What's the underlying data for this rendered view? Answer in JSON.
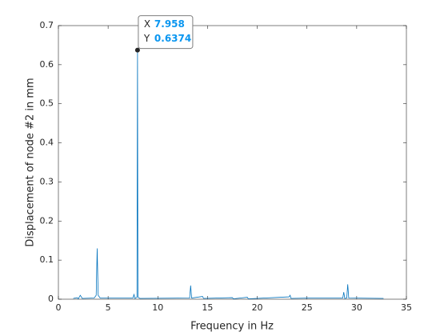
{
  "chart_data": {
    "type": "line",
    "x_label": "Frequency in Hz",
    "y_label": "Displacement of node #2 in mm",
    "x": [
      1.5,
      1.9,
      2.0,
      2.2,
      2.4,
      3.6,
      3.8,
      3.9,
      4.0,
      4.2,
      7.5,
      7.6,
      7.7,
      7.9,
      7.958,
      8.0,
      8.2,
      13.2,
      13.3,
      13.4,
      14.5,
      14.6,
      17.5,
      17.6,
      19.0,
      19.1,
      23.2,
      23.3,
      23.4,
      25.3,
      28.6,
      28.7,
      28.8,
      29.0,
      29.1,
      29.2,
      32.7
    ],
    "values": [
      0.002,
      0.004,
      0.001,
      0.01,
      0.002,
      0.003,
      0.01,
      0.13,
      0.01,
      0.003,
      0.003,
      0.012,
      0.002,
      0.005,
      0.6374,
      0.005,
      0.002,
      0.003,
      0.035,
      0.003,
      0.007,
      0.002,
      0.004,
      0.001,
      0.005,
      0.001,
      0.006,
      0.01,
      0.002,
      0.003,
      0.003,
      0.018,
      0.002,
      0.003,
      0.038,
      0.003,
      0.002
    ],
    "color": "#0072bd",
    "xlim": [
      0,
      35
    ],
    "xticks": [
      0,
      5,
      10,
      15,
      20,
      25,
      30,
      35
    ],
    "ylim": [
      0,
      0.7
    ],
    "yticks": [
      0,
      0.1,
      0.2,
      0.3,
      0.4,
      0.5,
      0.6,
      0.7
    ],
    "grid": false,
    "datatip": {
      "x_name": "X",
      "y_name": "Y",
      "x": 7.958,
      "y": 0.6374
    }
  }
}
